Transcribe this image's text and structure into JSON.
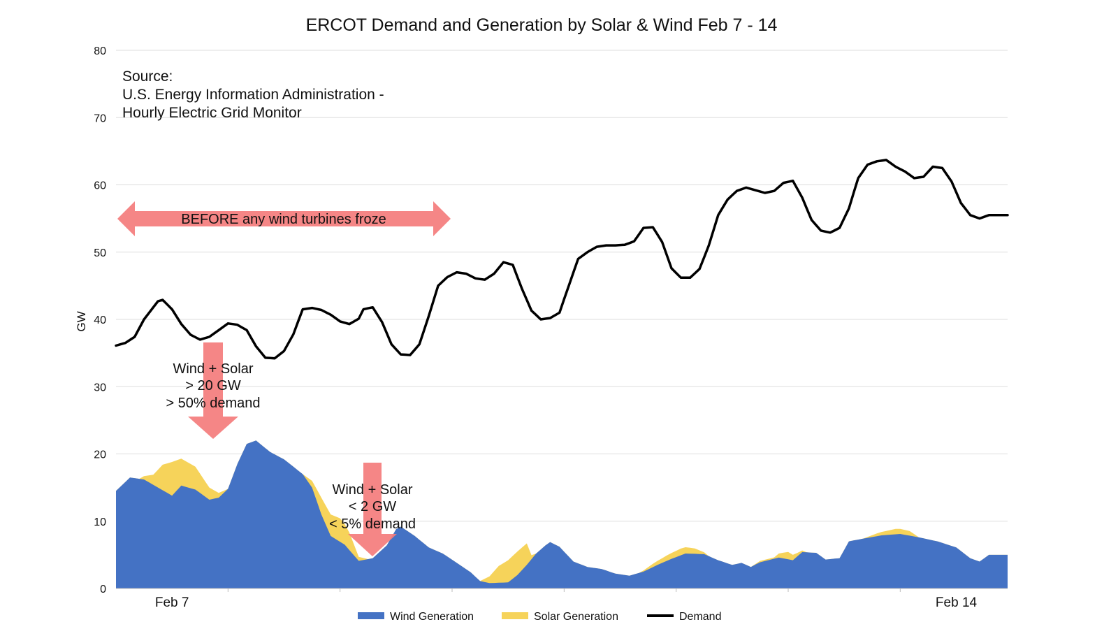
{
  "chart_data": {
    "type": "area",
    "title": "ERCOT Demand and Generation by Solar & Wind Feb 7 - 14",
    "ylabel": "GW",
    "xlabel": "",
    "ylim": [
      0,
      80
    ],
    "yticks": [
      0,
      10,
      20,
      30,
      40,
      50,
      60,
      70,
      80
    ],
    "x_tick_labels": [
      {
        "label": "Feb 7",
        "hour": 12
      },
      {
        "label": "Feb 14",
        "hour": 180
      }
    ],
    "x_range_hours": [
      0,
      191
    ],
    "x_description": "hourly",
    "grid": "horizontal",
    "legend_position": "bottom",
    "colors": {
      "wind": "#4472c4",
      "solar": "#f6d35a",
      "demand": "#000000",
      "arrow": "#f47c7c"
    },
    "source_lines": [
      "Source:",
      "U.S. Energy Information Administration -",
      "Hourly Electric Grid Monitor"
    ],
    "annotations": {
      "before_label": "BEFORE any wind turbines froze",
      "high_lines": [
        "Wind + Solar",
        "> 20 GW",
        "> 50% demand"
      ],
      "low_lines": [
        "Wind + Solar",
        "< 2 GW",
        "< 5% demand"
      ]
    },
    "series": [
      {
        "name": "Wind Generation",
        "key": "wind",
        "anchors": [
          [
            0,
            14.5
          ],
          [
            3,
            16.5
          ],
          [
            6,
            16.2
          ],
          [
            9,
            15
          ],
          [
            12,
            13.8
          ],
          [
            14,
            15.3
          ],
          [
            17,
            14.7
          ],
          [
            20,
            13.2
          ],
          [
            22,
            13.5
          ],
          [
            24,
            14.8
          ],
          [
            26,
            18.5
          ],
          [
            28,
            21.5
          ],
          [
            30,
            22
          ],
          [
            33,
            20.3
          ],
          [
            36,
            19.2
          ],
          [
            40,
            17
          ],
          [
            42,
            15
          ],
          [
            44,
            11
          ],
          [
            46,
            7.8
          ],
          [
            49,
            6.5
          ],
          [
            52,
            4.1
          ],
          [
            55,
            4.5
          ],
          [
            58,
            6.4
          ],
          [
            60,
            8.8
          ],
          [
            61,
            9.2
          ],
          [
            64,
            7.8
          ],
          [
            67,
            6.1
          ],
          [
            70,
            5.2
          ],
          [
            73,
            3.8
          ],
          [
            76,
            2.4
          ],
          [
            78,
            1.1
          ],
          [
            80,
            0.8
          ],
          [
            84,
            0.9
          ],
          [
            86,
            2
          ],
          [
            88,
            3.5
          ],
          [
            90,
            5.2
          ],
          [
            92,
            6.4
          ],
          [
            93,
            6.9
          ],
          [
            95,
            6.2
          ],
          [
            98,
            4
          ],
          [
            101,
            3.2
          ],
          [
            104,
            2.9
          ],
          [
            107,
            2.2
          ],
          [
            110,
            1.9
          ],
          [
            113,
            2.5
          ],
          [
            116,
            3.5
          ],
          [
            119,
            4.4
          ],
          [
            122,
            5.2
          ],
          [
            126,
            5.1
          ],
          [
            129,
            4.2
          ],
          [
            132,
            3.5
          ],
          [
            134,
            3.8
          ],
          [
            136,
            3.2
          ],
          [
            138,
            3.9
          ],
          [
            142,
            4.6
          ],
          [
            145,
            4.2
          ],
          [
            147,
            5.4
          ],
          [
            150,
            5.3
          ],
          [
            152,
            4.3
          ],
          [
            155,
            4.5
          ],
          [
            157,
            7
          ],
          [
            160,
            7.4
          ],
          [
            164,
            7.9
          ],
          [
            168,
            8.1
          ],
          [
            172,
            7.6
          ],
          [
            176,
            7
          ],
          [
            180,
            6.1
          ],
          [
            183,
            4.5
          ],
          [
            185,
            4
          ],
          [
            187,
            5
          ]
        ]
      },
      {
        "name": "Solar Generation",
        "key": "solar",
        "anchors": [
          [
            0,
            0
          ],
          [
            5,
            0
          ],
          [
            8,
            1.5
          ],
          [
            10,
            3.8
          ],
          [
            12,
            5
          ],
          [
            14,
            4
          ],
          [
            17,
            3.4
          ],
          [
            20,
            1.8
          ],
          [
            22,
            0.7
          ],
          [
            24,
            0
          ],
          [
            40,
            0
          ],
          [
            42,
            1
          ],
          [
            44,
            2.5
          ],
          [
            46,
            3.2
          ],
          [
            48,
            3.5
          ],
          [
            50,
            2.6
          ],
          [
            52,
            0.6
          ],
          [
            54,
            0
          ],
          [
            78,
            0
          ],
          [
            80,
            1
          ],
          [
            82,
            2.5
          ],
          [
            84,
            3.3
          ],
          [
            86,
            3.5
          ],
          [
            88,
            3.2
          ],
          [
            89,
            0.6
          ],
          [
            90,
            0
          ],
          [
            112,
            0
          ],
          [
            115,
            0.5
          ],
          [
            118,
            0.8
          ],
          [
            121,
            1
          ],
          [
            124,
            0.8
          ],
          [
            127,
            0
          ],
          [
            136,
            0
          ],
          [
            138,
            0.2
          ],
          [
            141,
            0.2
          ],
          [
            142,
            0.6
          ],
          [
            144,
            1.1
          ],
          [
            146,
            0.5
          ],
          [
            148,
            0
          ],
          [
            160,
            0
          ],
          [
            163,
            0.4
          ],
          [
            165,
            0.6
          ],
          [
            167,
            0.8
          ],
          [
            170,
            0.7
          ],
          [
            172,
            0
          ]
        ]
      },
      {
        "name": "Demand",
        "key": "demand",
        "anchors": [
          [
            0,
            36.1
          ],
          [
            2,
            36.5
          ],
          [
            4,
            37.4
          ],
          [
            6,
            40
          ],
          [
            9,
            42.7
          ],
          [
            10,
            42.9
          ],
          [
            12,
            41.5
          ],
          [
            14,
            39.3
          ],
          [
            16,
            37.7
          ],
          [
            18,
            37
          ],
          [
            20,
            37.4
          ],
          [
            22,
            38.4
          ],
          [
            24,
            39.4
          ],
          [
            26,
            39.2
          ],
          [
            28,
            38.4
          ],
          [
            30,
            36
          ],
          [
            32,
            34.3
          ],
          [
            34,
            34.2
          ],
          [
            36,
            35.3
          ],
          [
            38,
            37.8
          ],
          [
            40,
            41.5
          ],
          [
            42,
            41.7
          ],
          [
            44,
            41.4
          ],
          [
            46,
            40.7
          ],
          [
            48,
            39.7
          ],
          [
            50,
            39.3
          ],
          [
            52,
            40.1
          ],
          [
            53,
            41.5
          ],
          [
            55,
            41.8
          ],
          [
            57,
            39.6
          ],
          [
            59,
            36.3
          ],
          [
            61,
            34.8
          ],
          [
            63,
            34.7
          ],
          [
            65,
            36.3
          ],
          [
            67,
            40.5
          ],
          [
            69,
            45
          ],
          [
            71,
            46.3
          ],
          [
            73,
            47
          ],
          [
            75,
            46.8
          ],
          [
            77,
            46.1
          ],
          [
            79,
            45.9
          ],
          [
            81,
            46.8
          ],
          [
            83,
            48.5
          ],
          [
            85,
            48.1
          ],
          [
            87,
            44.5
          ],
          [
            89,
            41.3
          ],
          [
            91,
            40
          ],
          [
            93,
            40.2
          ],
          [
            95,
            41
          ],
          [
            97,
            45
          ],
          [
            99,
            49
          ],
          [
            101,
            50
          ],
          [
            103,
            50.8
          ],
          [
            105,
            51
          ],
          [
            107,
            51
          ],
          [
            109,
            51.1
          ],
          [
            111,
            51.6
          ],
          [
            113,
            53.6
          ],
          [
            115,
            53.7
          ],
          [
            117,
            51.5
          ],
          [
            119,
            47.6
          ],
          [
            121,
            46.2
          ],
          [
            123,
            46.2
          ],
          [
            125,
            47.5
          ],
          [
            127,
            51
          ],
          [
            129,
            55.5
          ],
          [
            131,
            57.8
          ],
          [
            133,
            59.1
          ],
          [
            135,
            59.6
          ],
          [
            137,
            59.2
          ],
          [
            139,
            58.8
          ],
          [
            141,
            59.1
          ],
          [
            143,
            60.3
          ],
          [
            145,
            60.6
          ],
          [
            147,
            58.1
          ],
          [
            149,
            54.8
          ],
          [
            151,
            53.2
          ],
          [
            153,
            52.9
          ],
          [
            155,
            53.6
          ],
          [
            157,
            56.5
          ],
          [
            159,
            61
          ],
          [
            161,
            63
          ],
          [
            163,
            63.5
          ],
          [
            165,
            63.7
          ],
          [
            167,
            62.7
          ],
          [
            169,
            62
          ],
          [
            171,
            61
          ],
          [
            173,
            61.2
          ],
          [
            175,
            62.7
          ],
          [
            177,
            62.5
          ],
          [
            179,
            60.5
          ],
          [
            181,
            57.3
          ],
          [
            183,
            55.5
          ],
          [
            185,
            55
          ],
          [
            187,
            55.5
          ]
        ]
      }
    ]
  },
  "legend": [
    {
      "label": "Wind Generation",
      "key": "wind"
    },
    {
      "label": "Solar Generation",
      "key": "solar"
    },
    {
      "label": "Demand",
      "key": "demand"
    }
  ]
}
